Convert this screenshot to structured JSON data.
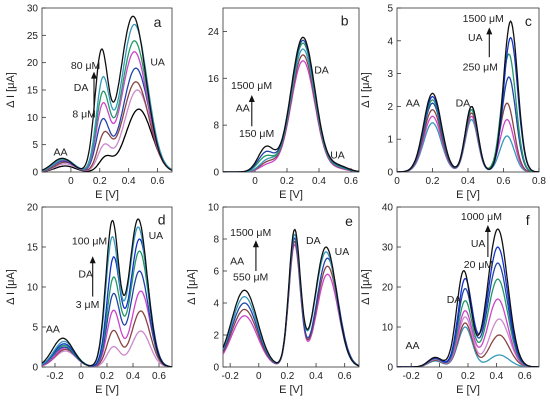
{
  "chart_data": [
    {
      "type": "line",
      "panel": "a",
      "xlabel": "E [V]",
      "ylabel": "Δ I [μA]",
      "xlim": [
        -0.2,
        0.7
      ],
      "ylim": [
        0,
        30
      ],
      "xticks": [
        0.0,
        0.2,
        0.4,
        0.6
      ],
      "yticks": [
        0,
        5,
        10,
        15,
        20,
        25,
        30
      ],
      "annotations": [
        "AA",
        "DA",
        "UA",
        "80 μM",
        "8 μM"
      ],
      "series": [
        {
          "peaks": [
            [
              -0.04,
              1.1,
              0.07
            ],
            [
              0.24,
              2.5,
              0.045
            ],
            [
              0.47,
              11.5,
              0.09
            ]
          ],
          "color": "#000000"
        },
        {
          "peaks": [
            [
              -0.04,
              1.5,
              0.07
            ],
            [
              0.23,
              4.5,
              0.045
            ],
            [
              0.46,
              15.0,
              0.09
            ]
          ],
          "color": "#cc88cc"
        },
        {
          "peaks": [
            [
              -0.04,
              1.8,
              0.07
            ],
            [
              0.23,
              6.5,
              0.045
            ],
            [
              0.45,
              16.5,
              0.09
            ]
          ],
          "color": "#884444"
        },
        {
          "peaks": [
            [
              -0.05,
              2.0,
              0.07
            ],
            [
              0.22,
              9.0,
              0.045
            ],
            [
              0.45,
              19.0,
              0.09
            ]
          ],
          "color": "#2244aa"
        },
        {
          "peaks": [
            [
              -0.05,
              2.2,
              0.07
            ],
            [
              0.22,
              11.5,
              0.045
            ],
            [
              0.44,
              22.0,
              0.09
            ]
          ],
          "color": "#cc44cc"
        },
        {
          "peaks": [
            [
              -0.05,
              2.3,
              0.07
            ],
            [
              0.22,
              13.5,
              0.045
            ],
            [
              0.44,
              24.0,
              0.09
            ]
          ],
          "color": "#229966"
        },
        {
          "peaks": [
            [
              -0.05,
              2.4,
              0.07
            ],
            [
              0.22,
              16.0,
              0.045
            ],
            [
              0.44,
              27.0,
              0.09
            ]
          ],
          "color": "#3399bb"
        },
        {
          "peaks": [
            [
              -0.06,
              2.5,
              0.07
            ],
            [
              0.21,
              21.0,
              0.045
            ],
            [
              0.43,
              28.5,
              0.09
            ]
          ],
          "color": "#111111"
        }
      ]
    },
    {
      "type": "line",
      "panel": "b",
      "xlabel": "E [V]",
      "ylabel": "",
      "xlim": [
        -0.2,
        0.65
      ],
      "ylim": [
        0,
        28
      ],
      "xticks": [
        0.0,
        0.2,
        0.4,
        0.6
      ],
      "yticks": [
        0,
        8,
        16,
        24
      ],
      "annotations": [
        "DA",
        "AA",
        "UA",
        "1500 μM",
        "150 μM"
      ],
      "series": [
        {
          "peaks": [
            [
              0.08,
              1.2,
              0.05
            ],
            [
              0.3,
              19.0,
              0.075
            ],
            [
              0.52,
              0.5,
              0.06
            ]
          ],
          "color": "#cc44cc"
        },
        {
          "peaks": [
            [
              0.08,
              1.6,
              0.05
            ],
            [
              0.3,
              20.0,
              0.075
            ],
            [
              0.52,
              0.6,
              0.06
            ]
          ],
          "color": "#884444"
        },
        {
          "peaks": [
            [
              0.08,
              2.0,
              0.05
            ],
            [
              0.3,
              21.0,
              0.075
            ],
            [
              0.52,
              0.7,
              0.06
            ]
          ],
          "color": "#3399bb"
        },
        {
          "peaks": [
            [
              0.07,
              2.6,
              0.05
            ],
            [
              0.3,
              22.0,
              0.075
            ],
            [
              0.52,
              0.8,
              0.06
            ]
          ],
          "color": "#229966"
        },
        {
          "peaks": [
            [
              0.07,
              3.3,
              0.05
            ],
            [
              0.3,
              22.5,
              0.075
            ],
            [
              0.52,
              0.9,
              0.06
            ]
          ],
          "color": "#2244aa"
        },
        {
          "peaks": [
            [
              0.07,
              4.2,
              0.05
            ],
            [
              0.3,
              23.0,
              0.075
            ],
            [
              0.52,
              1.0,
              0.06
            ]
          ],
          "color": "#111111"
        }
      ]
    },
    {
      "type": "line",
      "panel": "c",
      "xlabel": "E [V]",
      "ylabel": "Δ I [μA]",
      "xlim": [
        0.0,
        0.8
      ],
      "ylim": [
        0,
        5
      ],
      "xticks": [
        0.0,
        0.2,
        0.4,
        0.6,
        0.8
      ],
      "yticks": [
        0,
        1,
        2,
        3,
        4,
        5
      ],
      "annotations": [
        "AA",
        "DA",
        "UA",
        "1500 μM",
        "250 μM"
      ],
      "series": [
        {
          "peaks": [
            [
              0.2,
              1.5,
              0.05
            ],
            [
              0.42,
              1.6,
              0.035
            ],
            [
              0.62,
              1.1,
              0.04
            ]
          ],
          "color": "#3399bb"
        },
        {
          "peaks": [
            [
              0.2,
              1.7,
              0.05
            ],
            [
              0.42,
              1.7,
              0.035
            ],
            [
              0.62,
              1.6,
              0.04
            ]
          ],
          "color": "#cc44cc"
        },
        {
          "peaks": [
            [
              0.2,
              1.9,
              0.05
            ],
            [
              0.42,
              1.8,
              0.035
            ],
            [
              0.62,
              2.1,
              0.04
            ]
          ],
          "color": "#884444"
        },
        {
          "peaks": [
            [
              0.2,
              2.1,
              0.05
            ],
            [
              0.42,
              1.9,
              0.035
            ],
            [
              0.63,
              2.9,
              0.04
            ]
          ],
          "color": "#2244aa"
        },
        {
          "peaks": [
            [
              0.2,
              2.2,
              0.05
            ],
            [
              0.42,
              1.9,
              0.035
            ],
            [
              0.63,
              3.6,
              0.04
            ]
          ],
          "color": "#229966"
        },
        {
          "peaks": [
            [
              0.2,
              2.3,
              0.05
            ],
            [
              0.42,
              2.0,
              0.035
            ],
            [
              0.64,
              4.1,
              0.04
            ]
          ],
          "color": "#1133cc"
        },
        {
          "peaks": [
            [
              0.2,
              2.4,
              0.05
            ],
            [
              0.42,
              2.0,
              0.035
            ],
            [
              0.64,
              4.6,
              0.04
            ]
          ],
          "color": "#111111"
        }
      ]
    },
    {
      "type": "line",
      "panel": "d",
      "xlabel": "E [V]",
      "ylabel": "Δ I [μA]",
      "xlim": [
        -0.3,
        0.7
      ],
      "ylim": [
        0,
        20
      ],
      "xticks": [
        -0.2,
        0.0,
        0.2,
        0.4,
        0.6
      ],
      "yticks": [
        0,
        5,
        10,
        15,
        20
      ],
      "annotations": [
        "AA",
        "DA",
        "UA",
        "100 μM",
        "3 μM"
      ],
      "series": [
        {
          "peaks": [
            [
              -0.12,
              2.0,
              0.08
            ],
            [
              0.25,
              2.5,
              0.05
            ],
            [
              0.46,
              4.5,
              0.07
            ]
          ],
          "color": "#cc88cc"
        },
        {
          "peaks": [
            [
              -0.12,
              2.2,
              0.08
            ],
            [
              0.25,
              4.5,
              0.05
            ],
            [
              0.46,
              7.0,
              0.07
            ]
          ],
          "color": "#884444"
        },
        {
          "peaks": [
            [
              -0.12,
              2.4,
              0.08
            ],
            [
              0.25,
              7.0,
              0.05
            ],
            [
              0.46,
              9.5,
              0.07
            ]
          ],
          "color": "#cc44cc"
        },
        {
          "peaks": [
            [
              -0.13,
              2.5,
              0.08
            ],
            [
              0.25,
              9.0,
              0.05
            ],
            [
              0.45,
              12.0,
              0.07
            ]
          ],
          "color": "#2244aa"
        },
        {
          "peaks": [
            [
              -0.13,
              2.7,
              0.08
            ],
            [
              0.25,
              11.0,
              0.05
            ],
            [
              0.45,
              14.5,
              0.07
            ]
          ],
          "color": "#229966"
        },
        {
          "peaks": [
            [
              -0.13,
              2.9,
              0.08
            ],
            [
              0.25,
              13.5,
              0.05
            ],
            [
              0.45,
              16.0,
              0.07
            ]
          ],
          "color": "#1133cc"
        },
        {
          "peaks": [
            [
              -0.13,
              3.2,
              0.08
            ],
            [
              0.24,
              16.0,
              0.05
            ],
            [
              0.44,
              17.5,
              0.07
            ]
          ],
          "color": "#3399bb"
        },
        {
          "peaks": [
            [
              -0.14,
              3.6,
              0.08
            ],
            [
              0.24,
              18.0,
              0.05
            ],
            [
              0.44,
              18.5,
              0.07
            ]
          ],
          "color": "#111111"
        }
      ]
    },
    {
      "type": "line",
      "panel": "e",
      "xlabel": "E [V]",
      "ylabel": "Δ I [μA]",
      "xlim": [
        -0.25,
        0.7
      ],
      "ylim": [
        0,
        10
      ],
      "xticks": [
        -0.2,
        0.0,
        0.2,
        0.4,
        0.6
      ],
      "yticks": [
        0,
        2,
        4,
        6,
        8,
        10
      ],
      "annotations": [
        "AA",
        "DA",
        "UA",
        "1500 μM",
        "550 μM"
      ],
      "series": [
        {
          "peaks": [
            [
              -0.1,
              3.2,
              0.09
            ],
            [
              0.25,
              7.6,
              0.04
            ],
            [
              0.48,
              5.8,
              0.075
            ]
          ],
          "color": "#cc44cc"
        },
        {
          "peaks": [
            [
              -0.1,
              3.6,
              0.09
            ],
            [
              0.25,
              7.8,
              0.04
            ],
            [
              0.48,
              6.3,
              0.075
            ]
          ],
          "color": "#884444"
        },
        {
          "peaks": [
            [
              -0.1,
              4.0,
              0.09
            ],
            [
              0.25,
              8.0,
              0.04
            ],
            [
              0.48,
              6.8,
              0.075
            ]
          ],
          "color": "#2244aa"
        },
        {
          "peaks": [
            [
              -0.1,
              4.4,
              0.09
            ],
            [
              0.25,
              8.2,
              0.04
            ],
            [
              0.47,
              7.2,
              0.075
            ]
          ],
          "color": "#3399bb"
        },
        {
          "peaks": [
            [
              -0.1,
              4.8,
              0.09
            ],
            [
              0.25,
              8.5,
              0.04
            ],
            [
              0.47,
              7.5,
              0.075
            ]
          ],
          "color": "#111111"
        }
      ]
    },
    {
      "type": "line",
      "panel": "f",
      "xlabel": "E [V]",
      "ylabel": "Δ I [μA]",
      "xlim": [
        -0.3,
        0.7
      ],
      "ylim": [
        0,
        40
      ],
      "xticks": [
        -0.2,
        0.0,
        0.2,
        0.4,
        0.6
      ],
      "yticks": [
        0,
        10,
        20,
        30,
        40
      ],
      "annotations": [
        "AA",
        "DA",
        "UA",
        "1000 μM",
        "20 μM"
      ],
      "series": [
        {
          "peaks": [
            [
              -0.03,
              1.5,
              0.05
            ],
            [
              0.18,
              10.0,
              0.05
            ],
            [
              0.42,
              3.0,
              0.07
            ]
          ],
          "color": "#3399bb"
        },
        {
          "peaks": [
            [
              -0.03,
              1.7,
              0.05
            ],
            [
              0.18,
              11.0,
              0.05
            ],
            [
              0.42,
              8.0,
              0.07
            ]
          ],
          "color": "#884444"
        },
        {
          "peaks": [
            [
              -0.03,
              1.9,
              0.05
            ],
            [
              0.18,
              12.5,
              0.05
            ],
            [
              0.42,
              12.0,
              0.07
            ]
          ],
          "color": "#cc88cc"
        },
        {
          "peaks": [
            [
              -0.03,
              2.0,
              0.05
            ],
            [
              0.18,
              14.0,
              0.05
            ],
            [
              0.41,
              17.0,
              0.07
            ]
          ],
          "color": "#cc44cc"
        },
        {
          "peaks": [
            [
              -0.03,
              2.1,
              0.05
            ],
            [
              0.18,
              16.5,
              0.05
            ],
            [
              0.41,
              22.0,
              0.07
            ]
          ],
          "color": "#229966"
        },
        {
          "peaks": [
            [
              -0.03,
              2.2,
              0.05
            ],
            [
              0.18,
              19.5,
              0.05
            ],
            [
              0.41,
              26.0,
              0.07
            ]
          ],
          "color": "#2244aa"
        },
        {
          "peaks": [
            [
              -0.03,
              2.3,
              0.05
            ],
            [
              0.18,
              22.0,
              0.05
            ],
            [
              0.41,
              30.0,
              0.07
            ]
          ],
          "color": "#1133cc"
        },
        {
          "peaks": [
            [
              -0.03,
              2.4,
              0.05
            ],
            [
              0.17,
              24.0,
              0.05
            ],
            [
              0.41,
              34.5,
              0.07
            ]
          ],
          "color": "#111111"
        }
      ]
    }
  ]
}
